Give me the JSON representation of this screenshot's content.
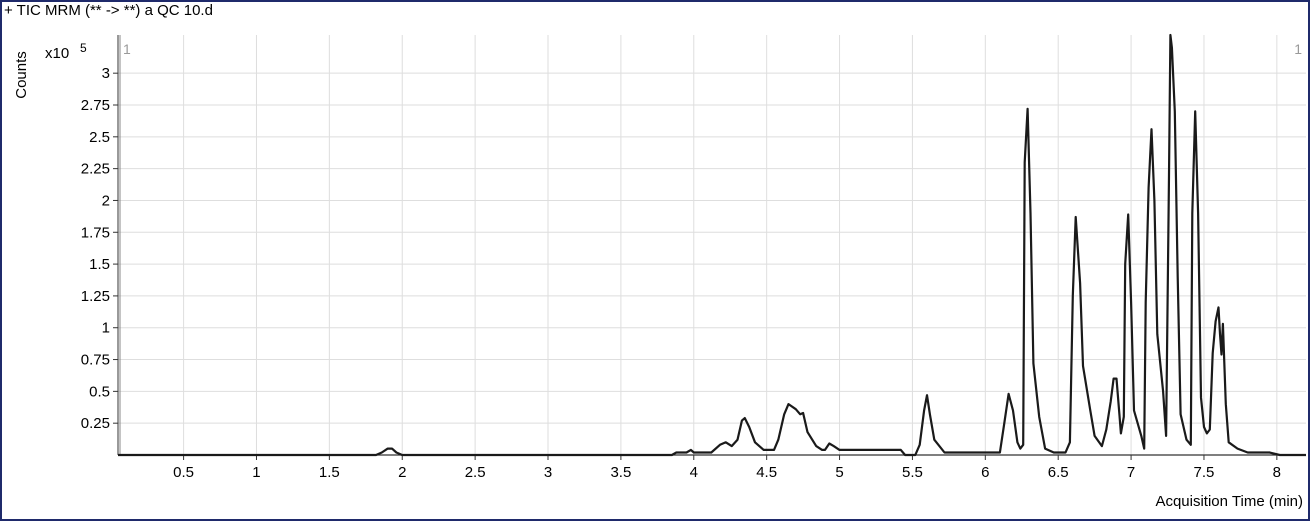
{
  "header": {
    "title": "+ TIC MRM (** -> **) a QC 10.d"
  },
  "chart_data": {
    "type": "line",
    "title": "+ TIC MRM (** -> **) a QC 10.d",
    "xlabel": "Acquisition Time (min)",
    "ylabel": "Counts",
    "y_multiplier": "x10",
    "y_exponent": "5",
    "range_marker_left": "1",
    "range_marker_right": "1",
    "xlim": [
      0.05,
      8.2
    ],
    "ylim": [
      0,
      3.3
    ],
    "x_ticks": [
      0.5,
      1,
      1.5,
      2,
      2.5,
      3,
      3.5,
      4,
      4.5,
      5,
      5.5,
      6,
      6.5,
      7,
      7.5,
      8
    ],
    "x_tick_labels": [
      "0.5",
      "1",
      "1.5",
      "2",
      "2.5",
      "3",
      "3.5",
      "4",
      "4.5",
      "5",
      "5.5",
      "6",
      "6.5",
      "7",
      "7.5",
      "8"
    ],
    "y_ticks": [
      0.25,
      0.5,
      0.75,
      1,
      1.25,
      1.5,
      1.75,
      2,
      2.25,
      2.5,
      2.75,
      3
    ],
    "y_tick_labels": [
      "0.25",
      "0.5",
      "0.75",
      "1",
      "1.25",
      "1.5",
      "1.75",
      "2",
      "2.25",
      "2.5",
      "2.75",
      "3"
    ],
    "grid": true,
    "series": [
      {
        "color": "#1a1a1a",
        "points": [
          [
            0.05,
            0.0
          ],
          [
            1.82,
            0.0
          ],
          [
            1.86,
            0.02
          ],
          [
            1.9,
            0.05
          ],
          [
            1.93,
            0.05
          ],
          [
            1.96,
            0.02
          ],
          [
            2.0,
            0.0
          ],
          [
            3.85,
            0.0
          ],
          [
            3.88,
            0.02
          ],
          [
            3.95,
            0.02
          ],
          [
            3.98,
            0.04
          ],
          [
            4.0,
            0.02
          ],
          [
            4.12,
            0.02
          ],
          [
            4.18,
            0.08
          ],
          [
            4.22,
            0.1
          ],
          [
            4.26,
            0.07
          ],
          [
            4.3,
            0.12
          ],
          [
            4.33,
            0.27
          ],
          [
            4.35,
            0.29
          ],
          [
            4.38,
            0.22
          ],
          [
            4.42,
            0.1
          ],
          [
            4.48,
            0.04
          ],
          [
            4.55,
            0.04
          ],
          [
            4.58,
            0.12
          ],
          [
            4.62,
            0.32
          ],
          [
            4.65,
            0.4
          ],
          [
            4.7,
            0.36
          ],
          [
            4.73,
            0.32
          ],
          [
            4.75,
            0.33
          ],
          [
            4.78,
            0.18
          ],
          [
            4.84,
            0.07
          ],
          [
            4.88,
            0.04
          ],
          [
            4.9,
            0.04
          ],
          [
            4.93,
            0.09
          ],
          [
            4.96,
            0.07
          ],
          [
            5.0,
            0.04
          ],
          [
            5.42,
            0.04
          ],
          [
            5.45,
            0.0
          ],
          [
            5.52,
            0.0
          ],
          [
            5.55,
            0.08
          ],
          [
            5.58,
            0.35
          ],
          [
            5.6,
            0.47
          ],
          [
            5.62,
            0.32
          ],
          [
            5.65,
            0.12
          ],
          [
            5.72,
            0.02
          ],
          [
            6.1,
            0.02
          ],
          [
            6.13,
            0.25
          ],
          [
            6.16,
            0.48
          ],
          [
            6.19,
            0.35
          ],
          [
            6.22,
            0.1
          ],
          [
            6.24,
            0.05
          ],
          [
            6.26,
            0.08
          ],
          [
            6.27,
            2.3
          ],
          [
            6.29,
            2.72
          ],
          [
            6.31,
            1.9
          ],
          [
            6.33,
            0.72
          ],
          [
            6.37,
            0.3
          ],
          [
            6.41,
            0.05
          ],
          [
            6.47,
            0.02
          ],
          [
            6.55,
            0.02
          ],
          [
            6.58,
            0.1
          ],
          [
            6.6,
            1.25
          ],
          [
            6.62,
            1.87
          ],
          [
            6.65,
            1.35
          ],
          [
            6.67,
            0.7
          ],
          [
            6.72,
            0.35
          ],
          [
            6.75,
            0.15
          ],
          [
            6.8,
            0.07
          ],
          [
            6.83,
            0.2
          ],
          [
            6.86,
            0.42
          ],
          [
            6.88,
            0.6
          ],
          [
            6.9,
            0.6
          ],
          [
            6.92,
            0.32
          ],
          [
            6.93,
            0.17
          ],
          [
            6.95,
            0.3
          ],
          [
            6.96,
            1.5
          ],
          [
            6.98,
            1.89
          ],
          [
            7.0,
            1.2
          ],
          [
            7.02,
            0.35
          ],
          [
            7.07,
            0.15
          ],
          [
            7.09,
            0.05
          ],
          [
            7.1,
            1.2
          ],
          [
            7.12,
            2.1
          ],
          [
            7.14,
            2.56
          ],
          [
            7.16,
            2.0
          ],
          [
            7.18,
            0.95
          ],
          [
            7.22,
            0.5
          ],
          [
            7.24,
            0.15
          ],
          [
            7.26,
            2.2
          ],
          [
            7.27,
            3.3
          ],
          [
            7.28,
            3.2
          ],
          [
            7.3,
            2.7
          ],
          [
            7.32,
            1.4
          ],
          [
            7.34,
            0.32
          ],
          [
            7.38,
            0.12
          ],
          [
            7.41,
            0.08
          ],
          [
            7.42,
            1.9
          ],
          [
            7.44,
            2.7
          ],
          [
            7.46,
            1.9
          ],
          [
            7.48,
            0.45
          ],
          [
            7.5,
            0.22
          ],
          [
            7.52,
            0.17
          ],
          [
            7.54,
            0.2
          ],
          [
            7.56,
            0.8
          ],
          [
            7.58,
            1.05
          ],
          [
            7.6,
            1.16
          ],
          [
            7.61,
            0.95
          ],
          [
            7.62,
            0.79
          ],
          [
            7.63,
            1.03
          ],
          [
            7.65,
            0.4
          ],
          [
            7.67,
            0.1
          ],
          [
            7.73,
            0.05
          ],
          [
            7.8,
            0.02
          ],
          [
            7.95,
            0.02
          ],
          [
            8.02,
            0.0
          ],
          [
            8.2,
            0.0
          ]
        ]
      }
    ]
  }
}
